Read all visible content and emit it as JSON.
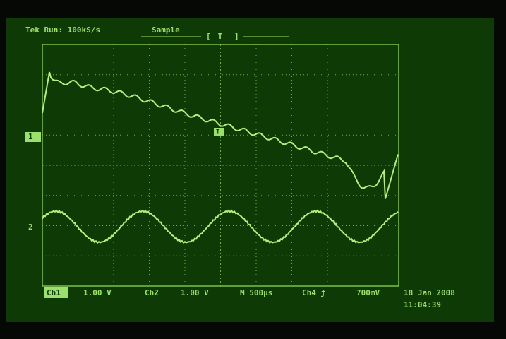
{
  "header": {
    "status": "Tek Run: 100kS/s",
    "mode": "Sample",
    "trigger_position": "T"
  },
  "markers": {
    "ch1": "1",
    "ch2": "2",
    "trigger_level": "T"
  },
  "footer": {
    "ch1_label": "Ch1",
    "ch1_scale": "1.00 V",
    "ch2_label": "Ch2",
    "ch2_scale": "1.00 V",
    "timebase": "M 500μs",
    "trigger_source": "Ch4 ƒ",
    "trigger_value": "700mV",
    "date": "18 Jan 2008",
    "time": "11:04:39"
  }
}
